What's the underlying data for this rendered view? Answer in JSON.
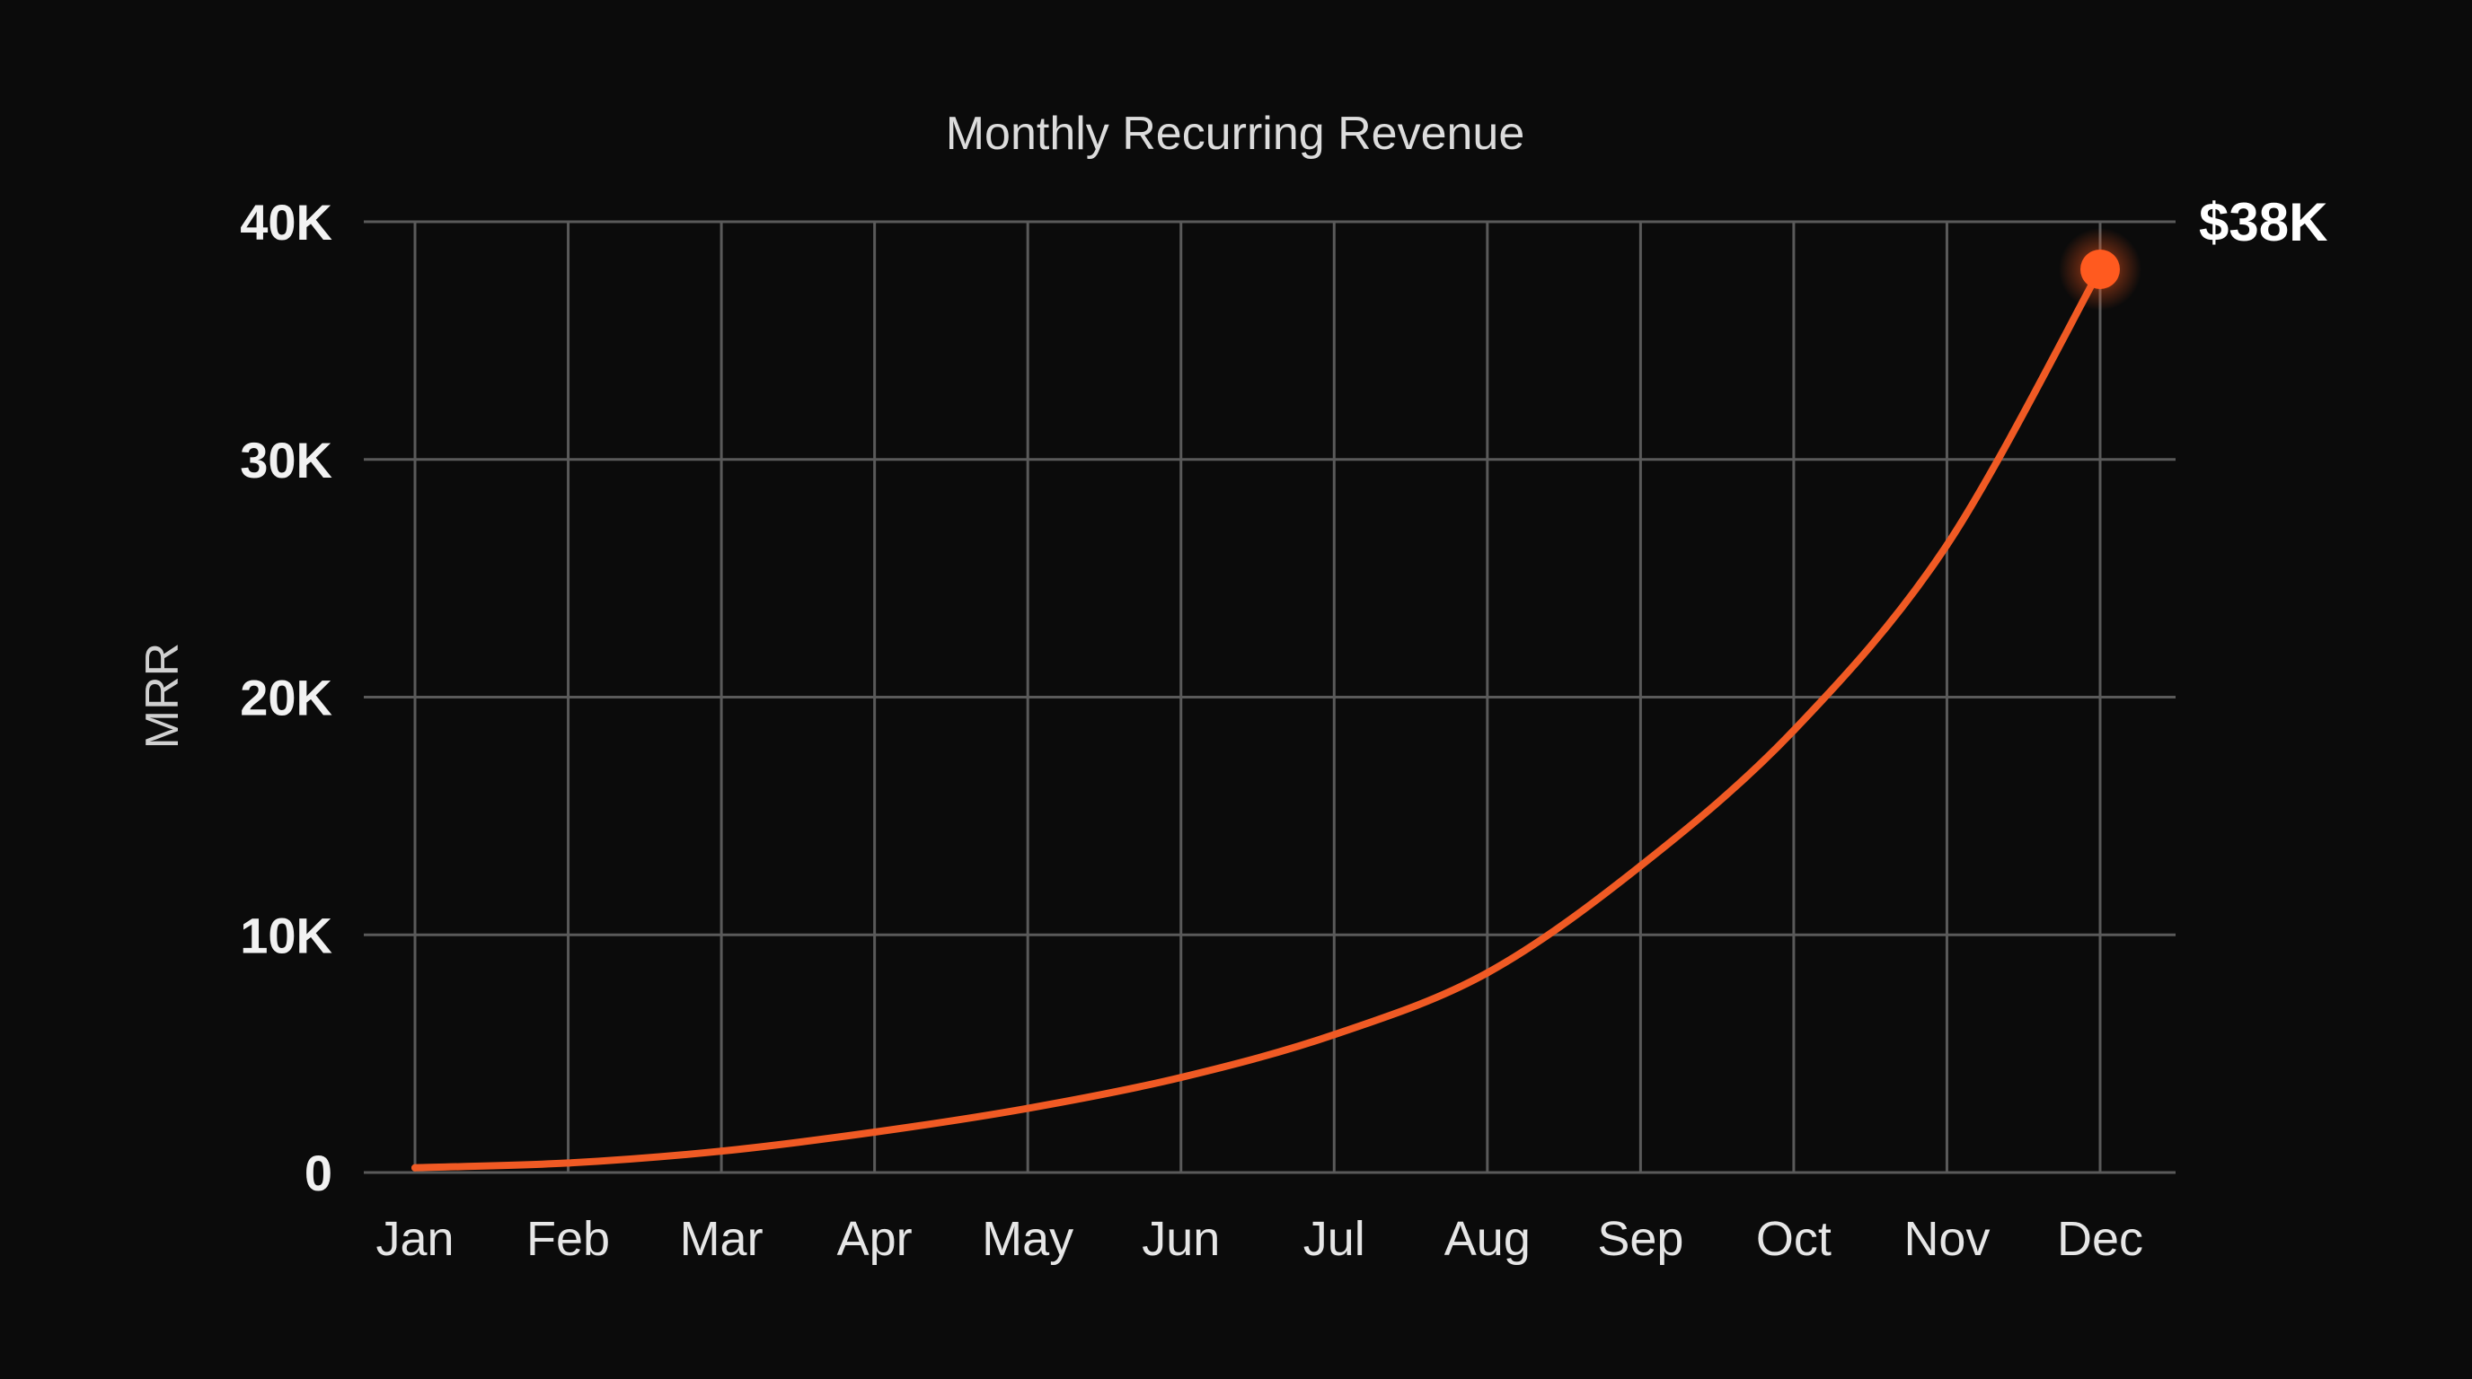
{
  "chart_data": {
    "type": "line",
    "title": "Monthly Recurring Revenue",
    "xlabel": "",
    "ylabel": "MRR",
    "categories": [
      "Jan",
      "Feb",
      "Mar",
      "Apr",
      "May",
      "Jun",
      "Jul",
      "Aug",
      "Sep",
      "Oct",
      "Nov",
      "Dec"
    ],
    "values": [
      200,
      400,
      900,
      1700,
      2700,
      4000,
      5800,
      8400,
      12900,
      18600,
      26400,
      38000
    ],
    "ylim": [
      0,
      40000
    ],
    "yticks": [
      0,
      10000,
      20000,
      30000,
      40000
    ],
    "ytick_labels": [
      "0",
      "10K",
      "20K",
      "30K",
      "40K"
    ],
    "grid": true,
    "line_color": "#f05a24",
    "end_annotation": "$38K",
    "background": "#0b0b0b"
  }
}
